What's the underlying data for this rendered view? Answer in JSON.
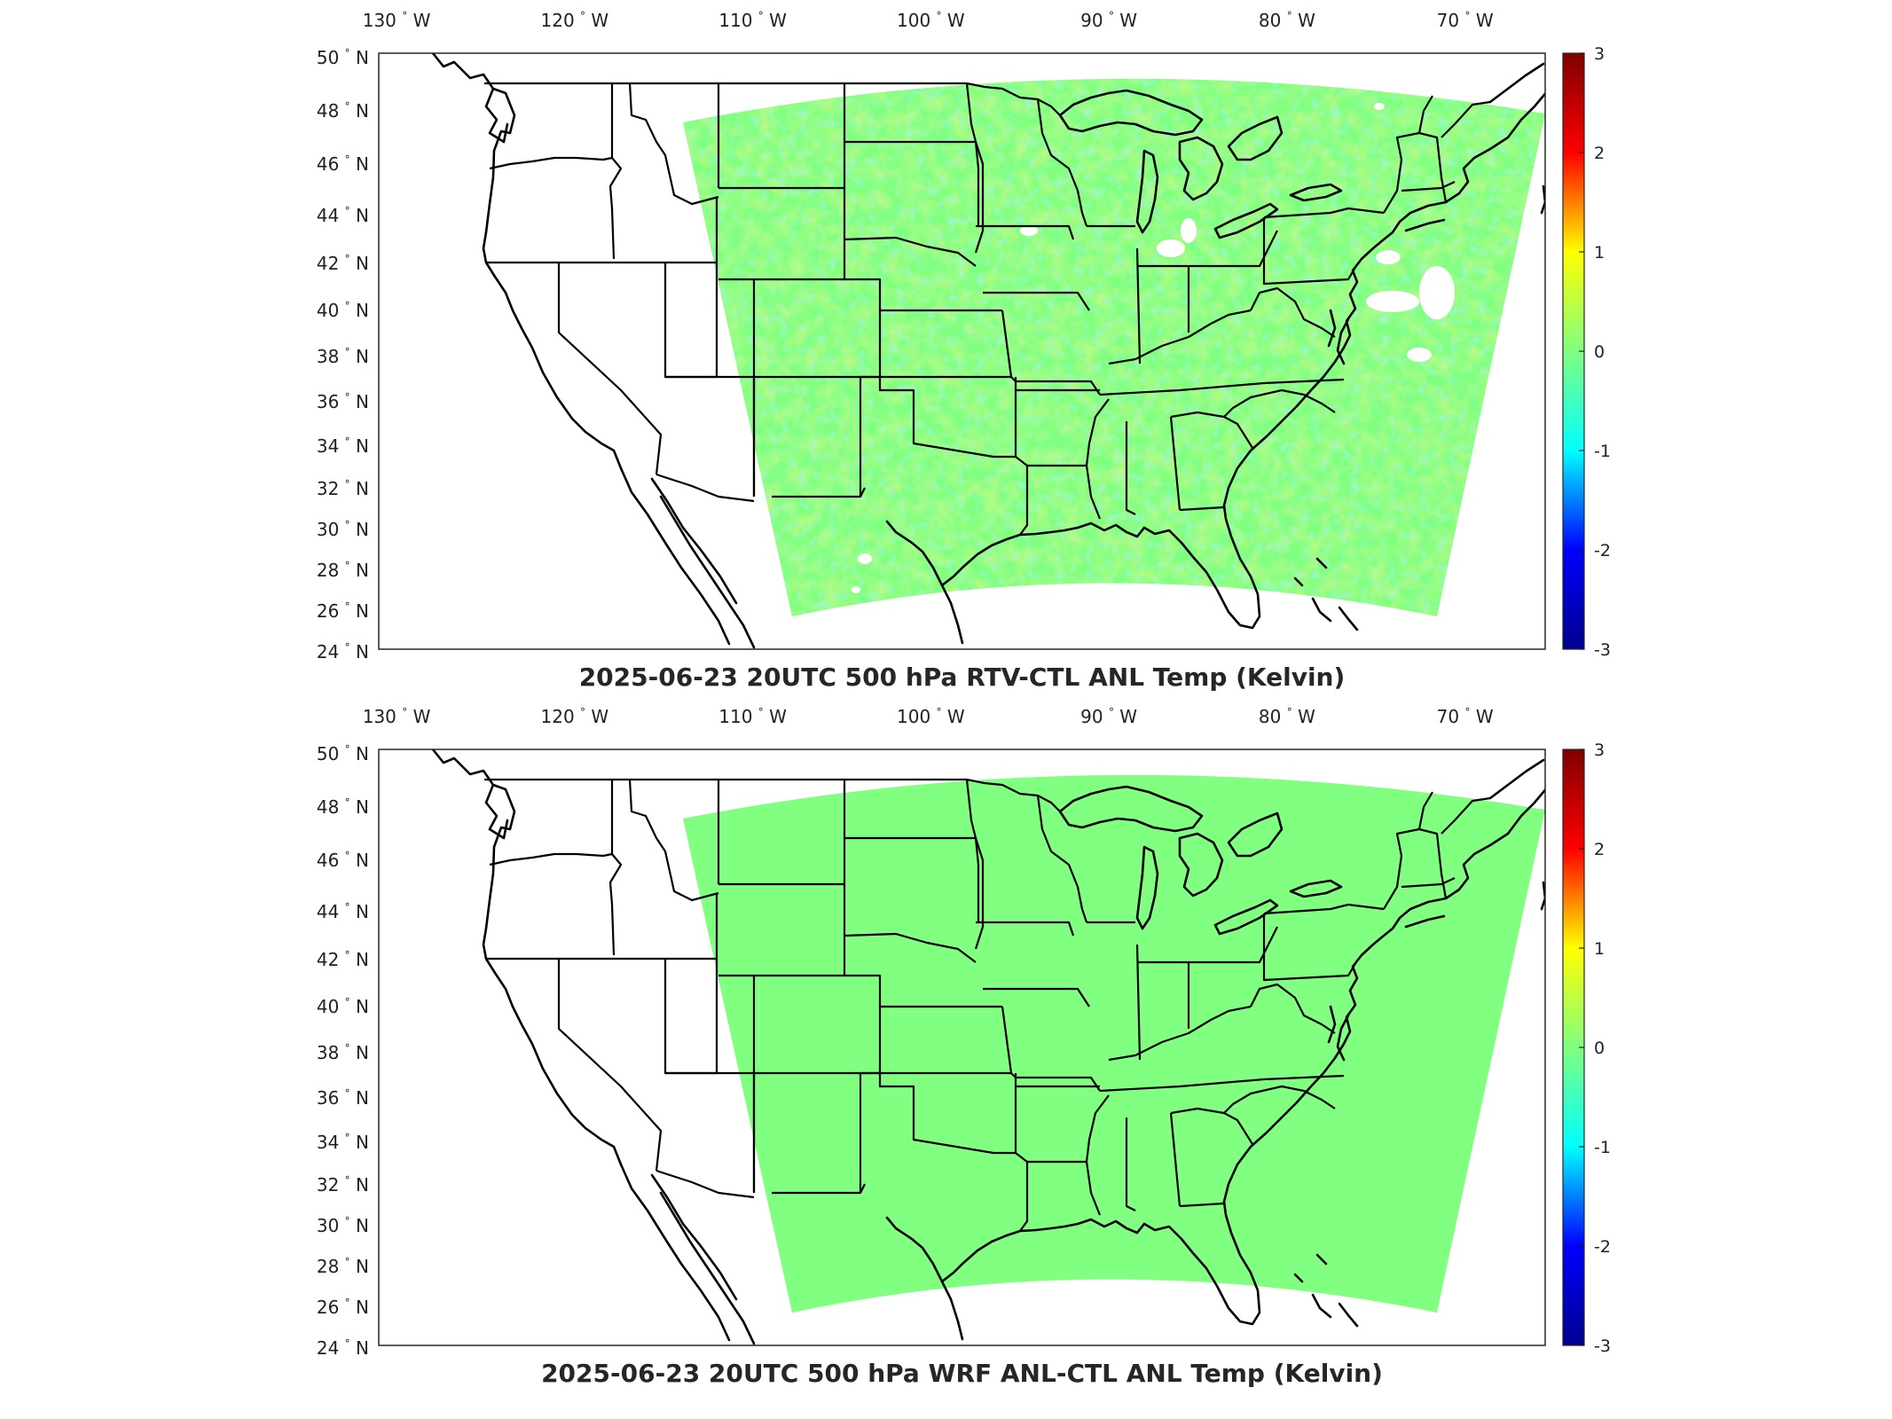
{
  "colors": {
    "colormap": [
      "#00008f",
      "#0000ff",
      "#00ffff",
      "#80ff80",
      "#ffff00",
      "#ff0000",
      "#800000"
    ],
    "zero_color": "#80ff80",
    "frame": "#262626",
    "map_lines": "#000000"
  },
  "lon_labels": [
    "130",
    "120",
    "110",
    "100",
    "90",
    "80",
    "70"
  ],
  "lon_hemisphere": "W",
  "lat_labels": [
    "50",
    "48",
    "46",
    "44",
    "42",
    "40",
    "38",
    "36",
    "34",
    "32",
    "30",
    "28",
    "26",
    "24"
  ],
  "lat_hemisphere": "N",
  "degree_symbol": "°",
  "colorbar_ticks": [
    "3",
    "2",
    "1",
    "0",
    "-1",
    "-2",
    "-3"
  ],
  "panels": [
    {
      "title": "2025-06-23 20UTC 500 hPa RTV-CTL ANL Temp (Kelvin)",
      "field": "RTV-CTL difference, mostly 0 to +1 K with scattered negative values and white gaps"
    },
    {
      "title": "2025-06-23 20UTC 500 hPa WRF ANL-CTL ANL Temp (Kelvin)",
      "field": "uniform 0 K"
    }
  ],
  "chart_data": [
    {
      "type": "heatmap",
      "title": "2025-06-23 20UTC 500 hPa RTV-CTL ANL Temp (Kelvin)",
      "x_range_deg": [
        -131,
        -65.5
      ],
      "y_range_deg": [
        24,
        50
      ],
      "clim": [
        -3,
        3
      ],
      "colorbar_ticks": [
        3,
        2,
        1,
        0,
        -1,
        -2,
        -3
      ],
      "typical_value_range": [
        -0.5,
        1.0
      ]
    },
    {
      "type": "heatmap",
      "title": "2025-06-23 20UTC 500 hPa WRF ANL-CTL ANL Temp (Kelvin)",
      "x_range_deg": [
        -131,
        -65.5
      ],
      "y_range_deg": [
        24,
        50
      ],
      "clim": [
        -3,
        3
      ],
      "colorbar_ticks": [
        3,
        2,
        1,
        0,
        -1,
        -2,
        -3
      ],
      "typical_value_range": [
        0,
        0
      ]
    }
  ]
}
